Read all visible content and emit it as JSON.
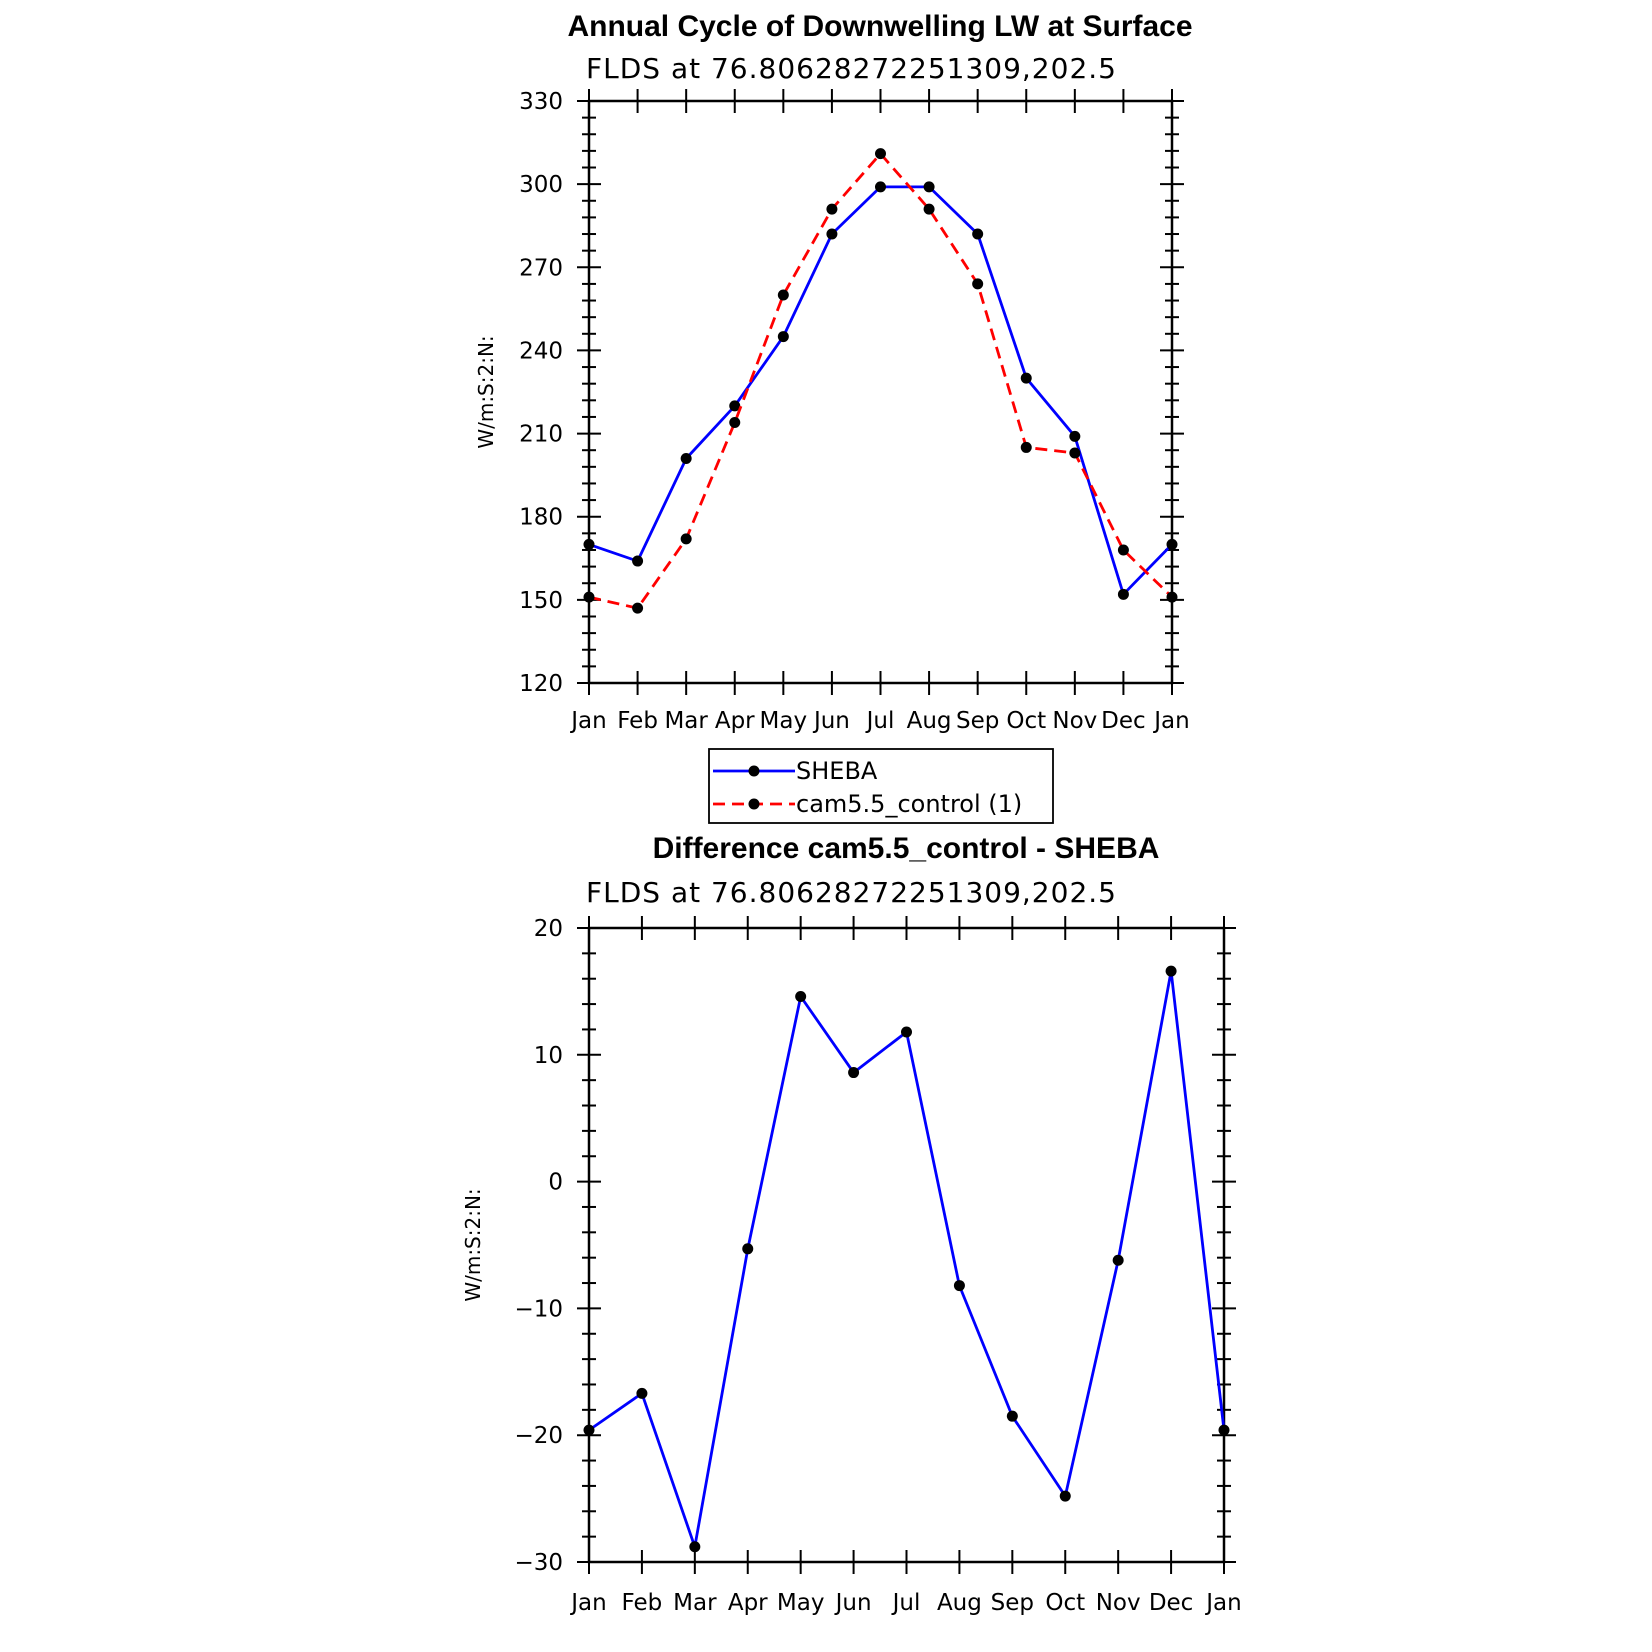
{
  "chart_data": [
    {
      "type": "line",
      "title": "Annual Cycle of Downwelling LW at Surface",
      "subtitle": "FLDS at 76.80628272251309,202.5",
      "xlabel": "",
      "ylabel": "W/m:S:2:N:",
      "categories": [
        "Jan",
        "Feb",
        "Mar",
        "Apr",
        "May",
        "Jun",
        "Jul",
        "Aug",
        "Sep",
        "Oct",
        "Nov",
        "Dec",
        "Jan"
      ],
      "ylim": [
        120,
        330
      ],
      "yticks": [
        120,
        150,
        180,
        210,
        240,
        270,
        300,
        330
      ],
      "grid": false,
      "series": [
        {
          "name": "SHEBA",
          "color": "#0000ff",
          "dash": "solid",
          "values": [
            170,
            164,
            201,
            220,
            245,
            282,
            299,
            299,
            282,
            230,
            209,
            152,
            170
          ]
        },
        {
          "name": "cam5.5_control (1)",
          "color": "#ff0000",
          "dash": "dashed",
          "values": [
            151,
            147,
            172,
            214,
            260,
            291,
            311,
            291,
            264,
            205,
            203,
            168,
            151
          ]
        }
      ],
      "legend": {
        "position": "bottom",
        "items": [
          "SHEBA",
          "cam5.5_control (1)"
        ]
      }
    },
    {
      "type": "line",
      "title": "Difference cam5.5_control - SHEBA",
      "subtitle": "FLDS at 76.80628272251309,202.5",
      "xlabel": "",
      "ylabel": "W/m:S:2:N:",
      "categories": [
        "Jan",
        "Feb",
        "Mar",
        "Apr",
        "May",
        "Jun",
        "Jul",
        "Aug",
        "Sep",
        "Oct",
        "Nov",
        "Dec",
        "Jan"
      ],
      "ylim": [
        -30,
        20
      ],
      "yticks": [
        -30,
        -20,
        -10,
        0,
        10,
        20
      ],
      "ytick_labels": [
        "−30",
        "−20",
        "−10",
        "0",
        "10",
        "20"
      ],
      "grid": false,
      "series": [
        {
          "color": "#0000ff",
          "dash": "solid",
          "values": [
            -19.6,
            -16.7,
            -28.8,
            -5.3,
            14.6,
            8.6,
            11.8,
            -8.2,
            -18.5,
            -24.8,
            -6.2,
            16.6,
            -19.6
          ]
        }
      ]
    }
  ]
}
